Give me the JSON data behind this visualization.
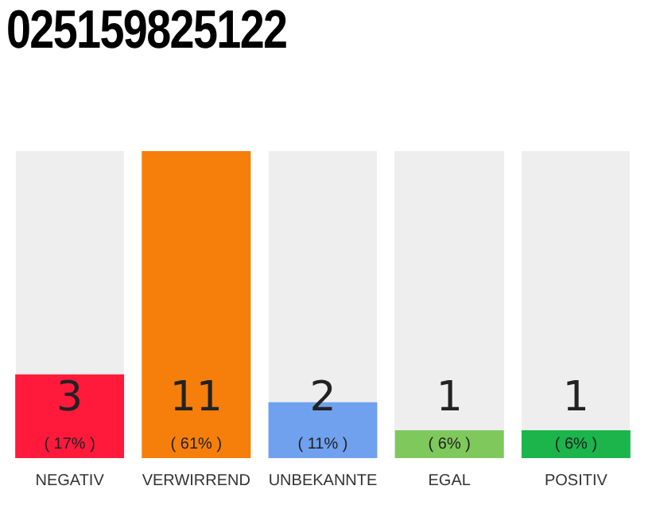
{
  "chart_data": {
    "type": "bar",
    "title": "025159825122",
    "categories": [
      "NEGATIV",
      "VERWIRREND",
      "UNBEKANNTE",
      "EGAL",
      "POSITIV"
    ],
    "values": [
      3,
      11,
      2,
      1,
      1
    ],
    "colors": [
      "#ff1a3c",
      "#f57f0a",
      "#6fa1ee",
      "#7fc85c",
      "#1bb54b"
    ],
    "annotations": [
      "( 17% )",
      "( 61% )",
      "( 11% )",
      "( 6% )",
      "( 6% )"
    ],
    "data_labels": true,
    "grid": false,
    "legend": false
  }
}
